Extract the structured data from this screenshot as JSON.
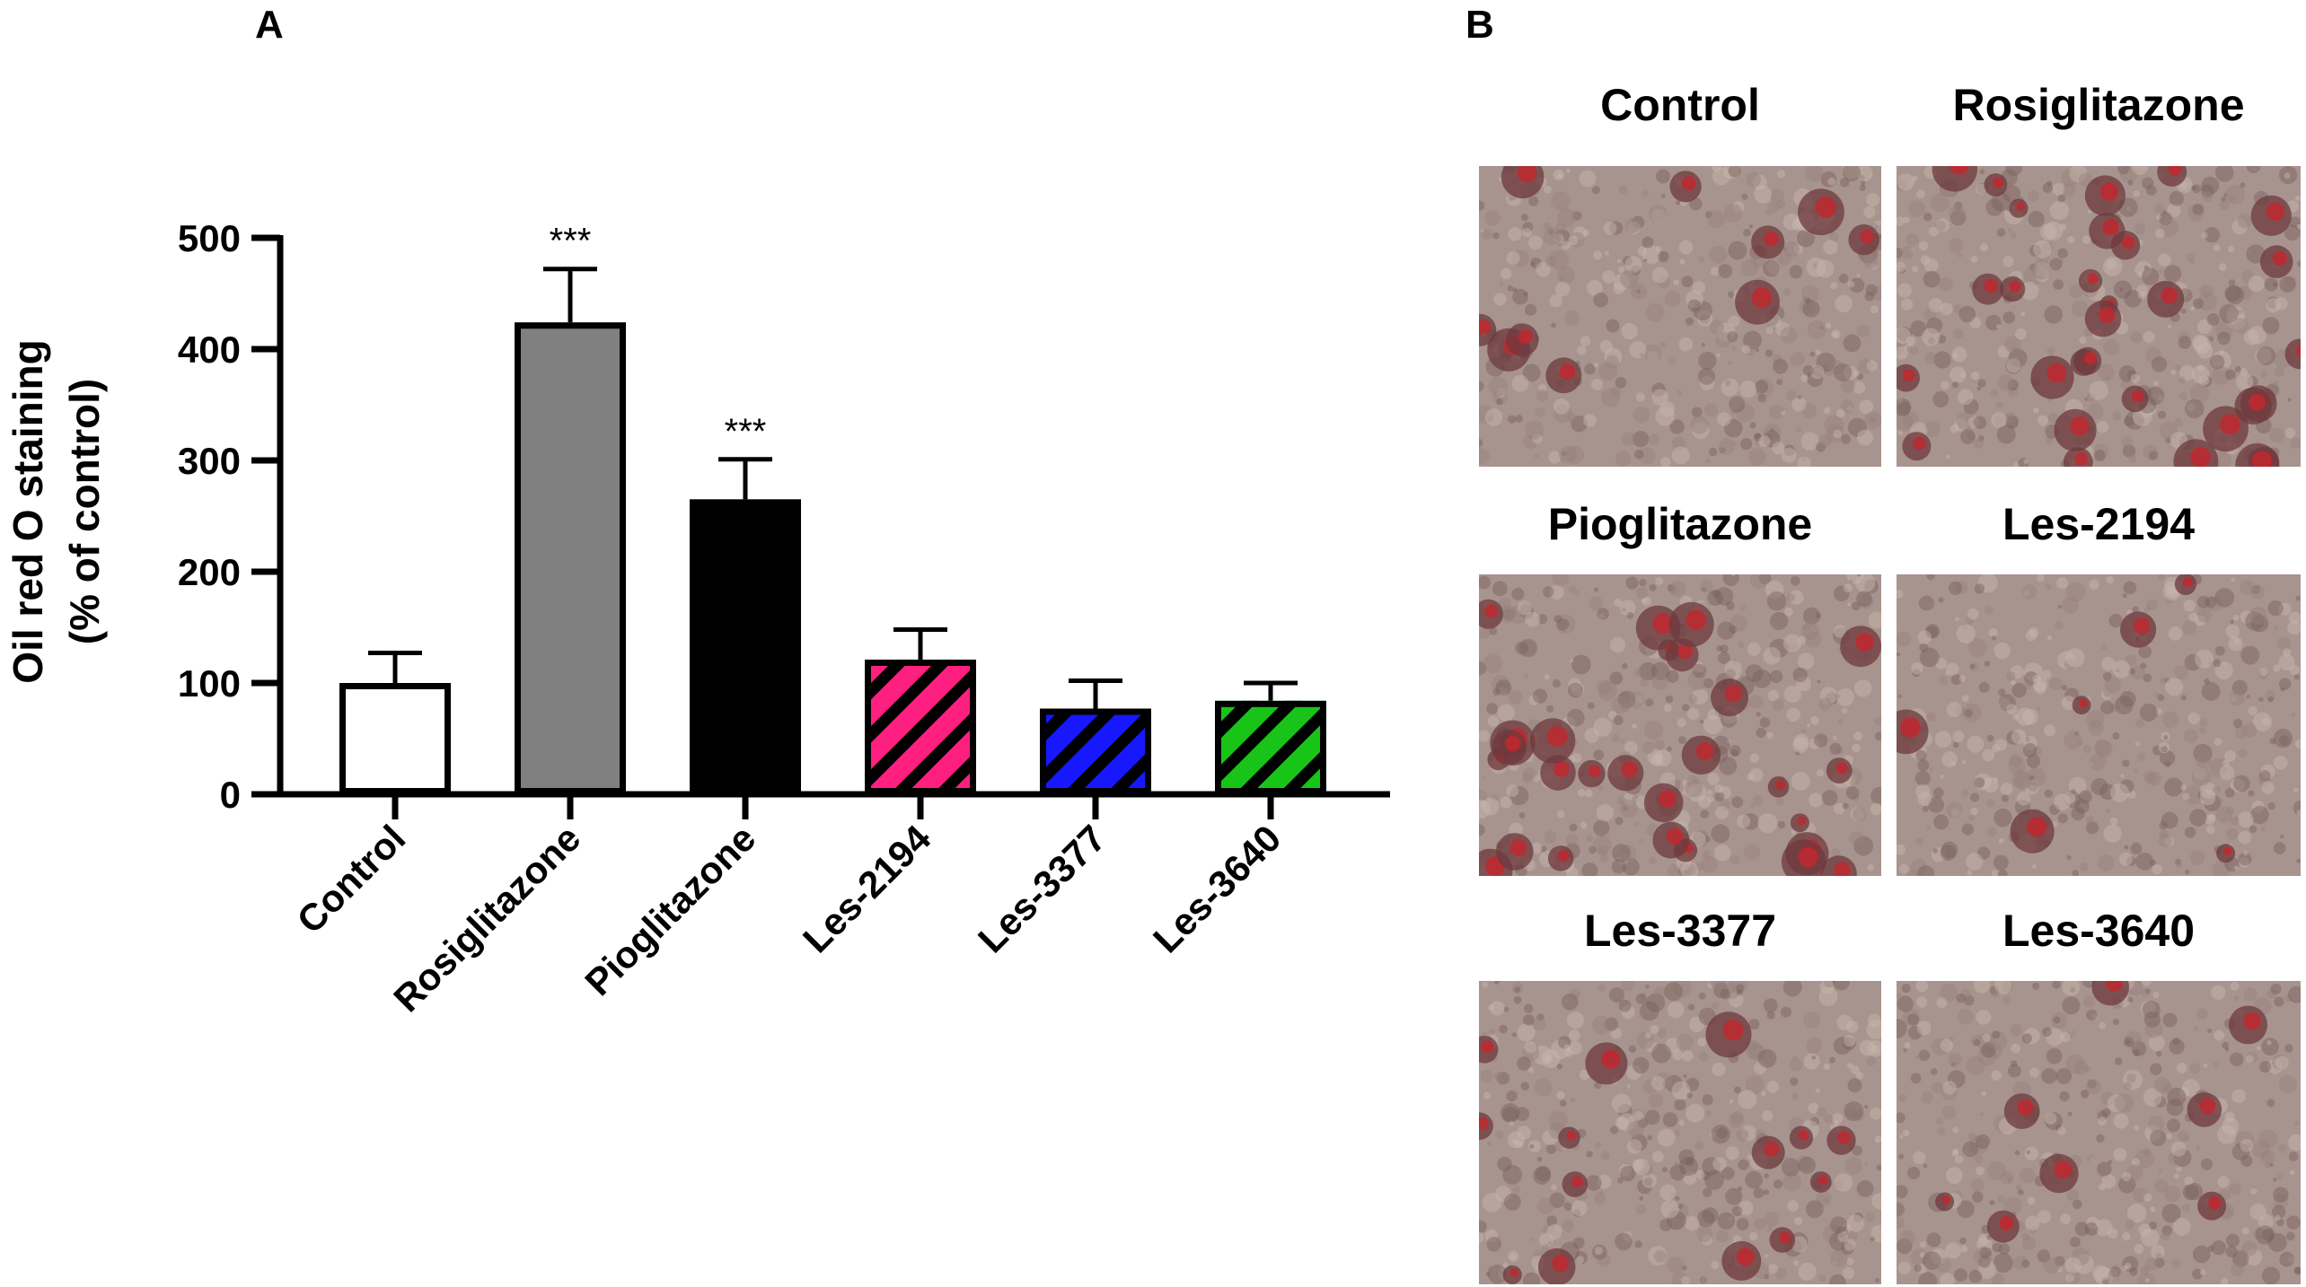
{
  "panels": {
    "a_label": "A",
    "b_label": "B"
  },
  "chart_data": {
    "type": "bar",
    "categories": [
      "Control",
      "Rosiglitazone",
      "Pioglitazone",
      "Les-2194",
      "Les-3377",
      "Les-3640"
    ],
    "values": [
      100,
      424,
      265,
      121,
      77,
      84
    ],
    "errors": [
      27,
      48,
      36,
      27,
      25,
      16
    ],
    "significance": [
      "",
      "***",
      "***",
      "",
      "",
      ""
    ],
    "ylabel_line1": "Oil red O staining",
    "ylabel_line2": "(% of control)",
    "xlabel": "",
    "ylim": [
      0,
      500
    ],
    "yticks": [
      0,
      100,
      200,
      300,
      400,
      500
    ],
    "fills": [
      "#ffffff",
      "#808080",
      "#000000",
      "#ff1f7f",
      "#1818ff",
      "#19c419"
    ],
    "hatched": [
      false,
      false,
      false,
      true,
      true,
      true
    ],
    "grid": false
  },
  "micrographs": [
    {
      "label": "Control"
    },
    {
      "label": "Rosiglitazone"
    },
    {
      "label": "Pioglitazone"
    },
    {
      "label": "Les-2194"
    },
    {
      "label": "Les-3377"
    },
    {
      "label": "Les-3640"
    }
  ]
}
